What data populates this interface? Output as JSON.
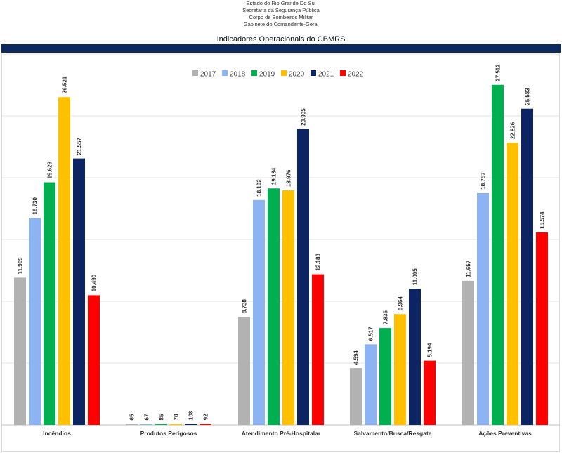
{
  "header": {
    "line1": "Estado do Rio Grande Do Sul",
    "line2": "Secretaria da Segurança Pública",
    "line3": "Corpo de Bombeiros Militar",
    "line4": "Gabinete do Comandante-Geral"
  },
  "chart_data": {
    "type": "bar",
    "title": "Indicadores Operacionais do CBMRS",
    "categories": [
      "Incêndios",
      "Produtos Perigosos",
      "Atendimento Pré-Hospitalar",
      "Salvamento/Busca/Resgate",
      "Ações Preventivas"
    ],
    "series": [
      {
        "name": "2017",
        "color": "#b2b2b2",
        "values": [
          11909,
          65,
          8738,
          4594,
          11657
        ],
        "labels": [
          "11.909",
          "65",
          "8.738",
          "4.594",
          "11.657"
        ]
      },
      {
        "name": "2018",
        "color": "#8cb4f2",
        "values": [
          16730,
          67,
          18192,
          6517,
          18757
        ],
        "labels": [
          "16.730",
          "67",
          "18.192",
          "6.517",
          "18.757"
        ]
      },
      {
        "name": "2019",
        "color": "#00b050",
        "values": [
          19629,
          85,
          19134,
          7835,
          27512
        ],
        "labels": [
          "19.629",
          "85",
          "19.134",
          "7.835",
          "27.512"
        ]
      },
      {
        "name": "2020",
        "color": "#ffc000",
        "values": [
          26521,
          78,
          18976,
          8964,
          22826
        ],
        "labels": [
          "26.521",
          "78",
          "18.976",
          "8.964",
          "22.826"
        ]
      },
      {
        "name": "2021",
        "color": "#0c2461",
        "values": [
          21557,
          108,
          23935,
          11005,
          25583
        ],
        "labels": [
          "21.557",
          "108",
          "23.935",
          "11.005",
          "25.583"
        ]
      },
      {
        "name": "2022",
        "color": "#ff0000",
        "values": [
          10490,
          92,
          12183,
          5194,
          15574
        ],
        "labels": [
          "10.490",
          "92",
          "12.183",
          "5.194",
          "15.574"
        ]
      }
    ],
    "ylim": [
      0,
      30000
    ],
    "grid": true,
    "legend": "top-center"
  }
}
